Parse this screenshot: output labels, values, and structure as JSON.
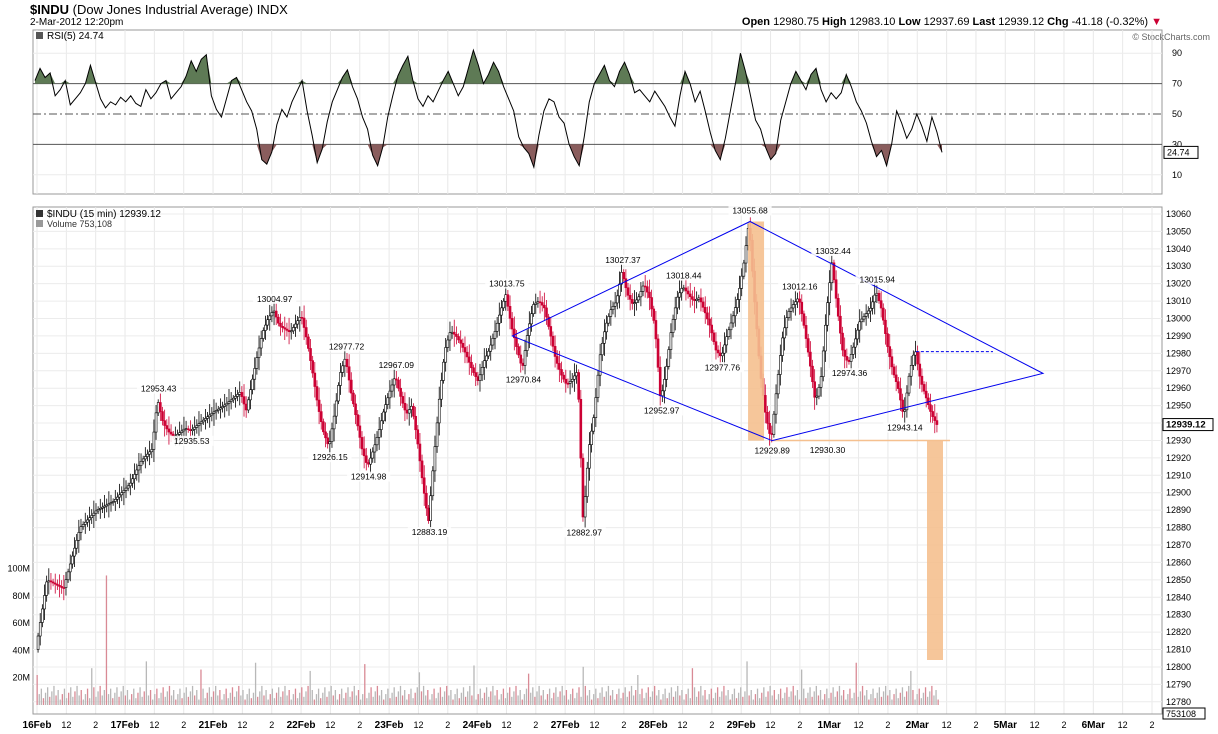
{
  "header": {
    "symbol": "$INDU",
    "symbol_desc": "(Dow Jones Industrial Average)",
    "exchange": "INDX",
    "datetime": "2-Mar-2012 12:20pm",
    "open_label": "Open",
    "open": "12980.75",
    "high_label": "High",
    "high": "12983.10",
    "low_label": "Low",
    "low": "12937.69",
    "last_label": "Last",
    "last": "12939.12",
    "chg_label": "Chg",
    "chg": "-41.18 (-0.32%)",
    "watermark": "© StockCharts.com"
  },
  "rsi_panel": {
    "legend": "RSI(5) 24.74",
    "current_value": "24.74",
    "levels": [
      "90",
      "70",
      "50",
      "30",
      "10"
    ]
  },
  "price_panel": {
    "legend": "$INDU (15 min) 12939.12",
    "volume_legend": "Volume 753,108",
    "last_value": "12939.12",
    "volume_value": "753108",
    "volume_ticks": [
      "100M",
      "80M",
      "60M",
      "40M",
      "20M"
    ],
    "annotations": [
      "12953.43",
      "13004.97",
      "12935.53",
      "12977.72",
      "12926.15",
      "12914.98",
      "12967.09",
      "12883.19",
      "13013.75",
      "12970.84",
      "13027.37",
      "13018.44",
      "12882.97",
      "12952.97",
      "12977.76",
      "13055.68",
      "12929.89",
      "13032.44",
      "13012.16",
      "12974.36",
      "13015.94",
      "12930.30",
      "12943.14"
    ]
  },
  "colors": {
    "up": "#000000",
    "down": "#cc0033",
    "pattern": "#0000ee",
    "target": "#f5c08f",
    "rsi_high": "#5e7a55",
    "rsi_low": "#8a5d5d"
  },
  "chart_data": {
    "type": "candlestick",
    "x_axis_labels": [
      "16Feb",
      "12",
      "2",
      "17Feb",
      "12",
      "2",
      "21Feb",
      "12",
      "2",
      "22Feb",
      "12",
      "2",
      "23Feb",
      "12",
      "2",
      "24Feb",
      "12",
      "2",
      "27Feb",
      "12",
      "2",
      "28Feb",
      "12",
      "2",
      "29Feb",
      "12",
      "2",
      "1Mar",
      "12",
      "2",
      "2Mar",
      "12",
      "2",
      "5Mar",
      "12",
      "2",
      "6Mar",
      "12",
      "2"
    ],
    "y_ticks": [
      12780,
      12790,
      12800,
      12810,
      12820,
      12830,
      12840,
      12850,
      12860,
      12870,
      12880,
      12890,
      12900,
      12910,
      12920,
      12930,
      12940,
      12950,
      12960,
      12970,
      12980,
      12990,
      13000,
      13010,
      13020,
      13030,
      13040,
      13050,
      13060
    ],
    "ylim": [
      12773,
      13064
    ],
    "rsi_ylim": [
      0,
      100
    ],
    "path": [
      [
        0,
        12810
      ],
      [
        2,
        12850
      ],
      [
        5,
        12845
      ],
      [
        8,
        12880
      ],
      [
        11,
        12890
      ],
      [
        14,
        12895
      ],
      [
        17,
        12905
      ],
      [
        19,
        12918
      ],
      [
        21,
        12925
      ],
      [
        22,
        12953.43
      ],
      [
        23,
        12940
      ],
      [
        24,
        12935
      ],
      [
        25,
        12932
      ],
      [
        27,
        12937
      ],
      [
        28,
        12935.53
      ],
      [
        30,
        12941
      ],
      [
        32,
        12946
      ],
      [
        34,
        12950
      ],
      [
        36,
        12955
      ],
      [
        37,
        12958
      ],
      [
        38,
        12947
      ],
      [
        39,
        12962
      ],
      [
        40,
        12978
      ],
      [
        41,
        12992
      ],
      [
        42,
        13000
      ],
      [
        43,
        13004.97
      ],
      [
        44,
        12996
      ],
      [
        45,
        12994
      ],
      [
        46,
        12992
      ],
      [
        47,
        12997
      ],
      [
        48,
        13002
      ],
      [
        49,
        12988
      ],
      [
        50,
        12970
      ],
      [
        51,
        12950
      ],
      [
        52,
        12935
      ],
      [
        53,
        12926.15
      ],
      [
        54,
        12945
      ],
      [
        55,
        12968
      ],
      [
        56,
        12977.72
      ],
      [
        57,
        12958
      ],
      [
        58,
        12942
      ],
      [
        59,
        12925
      ],
      [
        60,
        12914.98
      ],
      [
        61,
        12924
      ],
      [
        62,
        12935
      ],
      [
        63,
        12948
      ],
      [
        64,
        12958
      ],
      [
        65,
        12967.09
      ],
      [
        66,
        12955
      ],
      [
        67,
        12945
      ],
      [
        68,
        12950
      ],
      [
        69,
        12930
      ],
      [
        70,
        12905
      ],
      [
        71,
        12883.19
      ],
      [
        72,
        12920
      ],
      [
        73,
        12955
      ],
      [
        74,
        12982
      ],
      [
        75,
        12993
      ],
      [
        76,
        12990
      ],
      [
        77,
        12985
      ],
      [
        78,
        12978
      ],
      [
        79,
        12970
      ],
      [
        80,
        12964
      ],
      [
        81,
        12975
      ],
      [
        82,
        12982
      ],
      [
        83,
        12992
      ],
      [
        84,
        13004
      ],
      [
        85,
        13013.75
      ],
      [
        86,
        12996
      ],
      [
        87,
        12983
      ],
      [
        88,
        12970.84
      ],
      [
        89,
        12993
      ],
      [
        90,
        13008
      ],
      [
        91,
        13010
      ],
      [
        92,
        13006
      ],
      [
        93,
        12992
      ],
      [
        94,
        12977
      ],
      [
        95,
        12968
      ],
      [
        96,
        12962
      ],
      [
        97,
        12965
      ],
      [
        98,
        12970
      ],
      [
        99,
        12882.97
      ],
      [
        100,
        12925
      ],
      [
        101,
        12945
      ],
      [
        102,
        12978
      ],
      [
        103,
        12995
      ],
      [
        104,
        13005
      ],
      [
        105,
        13010
      ],
      [
        106,
        13027.37
      ],
      [
        107,
        13014
      ],
      [
        108,
        13008
      ],
      [
        109,
        13012
      ],
      [
        110,
        13020
      ],
      [
        111,
        13012
      ],
      [
        112,
        12995
      ],
      [
        113,
        12952.97
      ],
      [
        114,
        12970
      ],
      [
        115,
        12995
      ],
      [
        116,
        13012
      ],
      [
        117,
        13018.44
      ],
      [
        118,
        13014
      ],
      [
        119,
        13010
      ],
      [
        120,
        13012
      ],
      [
        121,
        13004
      ],
      [
        122,
        12995
      ],
      [
        123,
        12982
      ],
      [
        124,
        12977.76
      ],
      [
        125,
        12990
      ],
      [
        126,
        13000
      ],
      [
        127,
        13012
      ],
      [
        128,
        13030
      ],
      [
        129,
        13055.68
      ],
      [
        130,
        13010
      ],
      [
        131,
        12970
      ],
      [
        132,
        12945
      ],
      [
        133,
        12929.89
      ],
      [
        134,
        12960
      ],
      [
        135,
        12988
      ],
      [
        136,
        13003
      ],
      [
        137,
        13008
      ],
      [
        138,
        13012.16
      ],
      [
        139,
        12995
      ],
      [
        140,
        12975
      ],
      [
        141,
        12952
      ],
      [
        142,
        12965
      ],
      [
        143,
        13003
      ],
      [
        144,
        13032.44
      ],
      [
        145,
        13005
      ],
      [
        146,
        12980
      ],
      [
        147,
        12974.36
      ],
      [
        148,
        12985
      ],
      [
        149,
        12998
      ],
      [
        150,
        13002
      ],
      [
        151,
        13006
      ],
      [
        152,
        13015.94
      ],
      [
        153,
        13005
      ],
      [
        154,
        12985
      ],
      [
        155,
        12970
      ],
      [
        156,
        12960
      ],
      [
        157,
        12943.14
      ],
      [
        158,
        12968
      ],
      [
        159,
        12983
      ],
      [
        160,
        12965
      ],
      [
        161,
        12955
      ],
      [
        162,
        12945
      ],
      [
        163,
        12939.12
      ]
    ],
    "rsi": [
      [
        0,
        72
      ],
      [
        1,
        80
      ],
      [
        2,
        74
      ],
      [
        3,
        77
      ],
      [
        4,
        62
      ],
      [
        5,
        66
      ],
      [
        6,
        72
      ],
      [
        7,
        56
      ],
      [
        8,
        60
      ],
      [
        9,
        64
      ],
      [
        10,
        70
      ],
      [
        11,
        82
      ],
      [
        12,
        71
      ],
      [
        13,
        60
      ],
      [
        14,
        54
      ],
      [
        15,
        58
      ],
      [
        16,
        56
      ],
      [
        17,
        61
      ],
      [
        18,
        58
      ],
      [
        19,
        62
      ],
      [
        20,
        57
      ],
      [
        21,
        55
      ],
      [
        22,
        66
      ],
      [
        23,
        60
      ],
      [
        24,
        64
      ],
      [
        25,
        70
      ],
      [
        26,
        72
      ],
      [
        27,
        60
      ],
      [
        28,
        64
      ],
      [
        29,
        68
      ],
      [
        30,
        75
      ],
      [
        31,
        85
      ],
      [
        32,
        78
      ],
      [
        33,
        86
      ],
      [
        34,
        89
      ],
      [
        35,
        62
      ],
      [
        36,
        53
      ],
      [
        37,
        48
      ],
      [
        38,
        60
      ],
      [
        39,
        72
      ],
      [
        40,
        74
      ],
      [
        41,
        66
      ],
      [
        42,
        58
      ],
      [
        43,
        52
      ],
      [
        44,
        40
      ],
      [
        45,
        20
      ],
      [
        46,
        17
      ],
      [
        47,
        25
      ],
      [
        48,
        43
      ],
      [
        49,
        53
      ],
      [
        50,
        48
      ],
      [
        51,
        58
      ],
      [
        52,
        65
      ],
      [
        53,
        72
      ],
      [
        54,
        52
      ],
      [
        55,
        36
      ],
      [
        56,
        18
      ],
      [
        57,
        27
      ],
      [
        58,
        45
      ],
      [
        59,
        58
      ],
      [
        60,
        66
      ],
      [
        61,
        74
      ],
      [
        62,
        79
      ],
      [
        63,
        68
      ],
      [
        64,
        60
      ],
      [
        65,
        48
      ],
      [
        66,
        40
      ],
      [
        67,
        23
      ],
      [
        68,
        16
      ],
      [
        69,
        28
      ],
      [
        70,
        48
      ],
      [
        71,
        62
      ],
      [
        72,
        75
      ],
      [
        73,
        82
      ],
      [
        74,
        88
      ],
      [
        75,
        72
      ],
      [
        76,
        60
      ],
      [
        77,
        55
      ],
      [
        78,
        62
      ],
      [
        79,
        58
      ],
      [
        80,
        65
      ],
      [
        81,
        72
      ],
      [
        82,
        78
      ],
      [
        83,
        70
      ],
      [
        84,
        62
      ],
      [
        85,
        68
      ],
      [
        86,
        80
      ],
      [
        87,
        92
      ],
      [
        88,
        82
      ],
      [
        89,
        70
      ],
      [
        90,
        76
      ],
      [
        91,
        84
      ],
      [
        92,
        78
      ],
      [
        93,
        68
      ],
      [
        94,
        60
      ],
      [
        95,
        52
      ],
      [
        96,
        35
      ],
      [
        97,
        28
      ],
      [
        98,
        24
      ],
      [
        99,
        15
      ],
      [
        100,
        36
      ],
      [
        101,
        52
      ],
      [
        102,
        60
      ],
      [
        103,
        58
      ],
      [
        104,
        48
      ],
      [
        105,
        44
      ],
      [
        106,
        30
      ],
      [
        107,
        22
      ],
      [
        108,
        16
      ],
      [
        109,
        35
      ],
      [
        110,
        58
      ],
      [
        111,
        70
      ],
      [
        112,
        76
      ],
      [
        113,
        82
      ],
      [
        114,
        72
      ],
      [
        115,
        68
      ],
      [
        116,
        78
      ],
      [
        117,
        84
      ],
      [
        118,
        76
      ],
      [
        119,
        64
      ],
      [
        120,
        66
      ],
      [
        121,
        62
      ],
      [
        122,
        58
      ],
      [
        123,
        65
      ],
      [
        124,
        60
      ],
      [
        125,
        55
      ],
      [
        126,
        48
      ],
      [
        127,
        42
      ],
      [
        128,
        62
      ],
      [
        129,
        78
      ],
      [
        130,
        70
      ],
      [
        131,
        58
      ],
      [
        132,
        65
      ],
      [
        133,
        52
      ],
      [
        134,
        38
      ],
      [
        135,
        26
      ],
      [
        136,
        20
      ],
      [
        137,
        34
      ],
      [
        138,
        52
      ],
      [
        139,
        70
      ],
      [
        140,
        90
      ],
      [
        141,
        78
      ],
      [
        142,
        62
      ],
      [
        143,
        46
      ],
      [
        144,
        40
      ],
      [
        145,
        28
      ],
      [
        146,
        20
      ],
      [
        147,
        24
      ],
      [
        148,
        46
      ],
      [
        149,
        58
      ],
      [
        150,
        70
      ],
      [
        151,
        78
      ],
      [
        152,
        72
      ],
      [
        153,
        66
      ],
      [
        154,
        76
      ],
      [
        155,
        80
      ],
      [
        156,
        66
      ],
      [
        157,
        58
      ],
      [
        158,
        64
      ],
      [
        159,
        60
      ],
      [
        160,
        64
      ],
      [
        161,
        76
      ],
      [
        162,
        68
      ],
      [
        163,
        58
      ],
      [
        164,
        52
      ],
      [
        165,
        44
      ],
      [
        166,
        32
      ],
      [
        167,
        22
      ],
      [
        168,
        26
      ],
      [
        169,
        16
      ],
      [
        170,
        30
      ],
      [
        171,
        52
      ],
      [
        172,
        44
      ],
      [
        173,
        34
      ],
      [
        174,
        40
      ],
      [
        175,
        50
      ],
      [
        176,
        42
      ],
      [
        177,
        32
      ],
      [
        178,
        48
      ],
      [
        179,
        38
      ],
      [
        180,
        24.74
      ]
    ]
  }
}
